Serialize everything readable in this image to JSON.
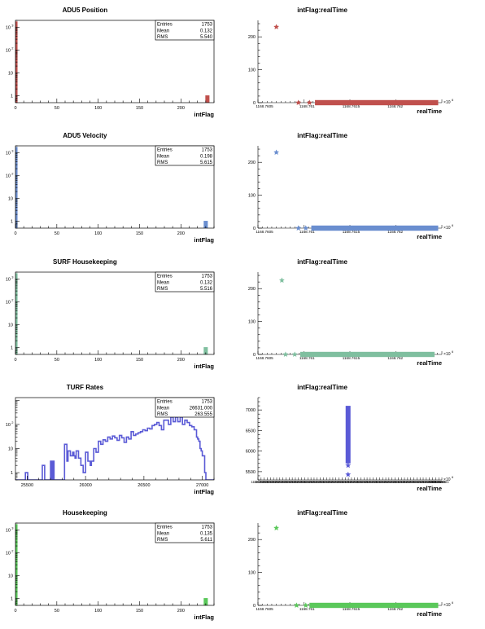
{
  "charts": [
    {
      "kind": "hist",
      "title": "ADU5 Position",
      "xlabel": "intFlag",
      "color": "#c0504d",
      "stats": {
        "Entries": "1753",
        "Mean": "0.132",
        "RMS": "5.540"
      },
      "xlim": [
        0,
        240
      ],
      "xticks": [
        "0",
        "50",
        "100",
        "150",
        "200"
      ],
      "xtick_values": [
        0,
        50,
        100,
        150,
        200
      ],
      "yscale": "log",
      "ylim": [
        0.5,
        2000
      ],
      "yticks": [
        {
          "value": 1,
          "base": "1",
          "exp": ""
        },
        {
          "value": 10,
          "base": "10",
          "exp": ""
        },
        {
          "value": 100,
          "base": "10",
          "exp": "2"
        },
        {
          "value": 1000,
          "base": "10",
          "exp": "3"
        }
      ],
      "bars": [
        {
          "x0": 0,
          "x1": 2,
          "value": 1730
        },
        {
          "x0": 230,
          "x1": 234,
          "value": 1
        }
      ]
    },
    {
      "kind": "scatter",
      "title": "intFlag:realTime",
      "xlabel": "realTime",
      "color": "#c0504d",
      "ylim": [
        0,
        250
      ],
      "yticks": [
        "0",
        "100",
        "200"
      ],
      "ytick_values": [
        0,
        100,
        200
      ],
      "xlim": [
        0,
        1
      ],
      "xticks": [
        "1168.7605",
        "1168.761",
        "1168.7615",
        "1168.762"
      ],
      "xtick_values": [
        0.0,
        0.24,
        0.48,
        0.72
      ],
      "xexp": "6",
      "band": {
        "x0": 0.31,
        "x1": 0.98,
        "y": 0
      },
      "points": [
        {
          "x": 0.1,
          "y": 230
        },
        {
          "x": 0.22,
          "y": 0
        },
        {
          "x": 0.28,
          "y": 0
        }
      ]
    },
    {
      "kind": "hist",
      "title": "ADU5 Velocity",
      "xlabel": "intFlag",
      "color": "#6a8ecf",
      "stats": {
        "Entries": "1753",
        "Mean": "0.198",
        "RMS": "5.615"
      },
      "xlim": [
        0,
        240
      ],
      "xticks": [
        "0",
        "50",
        "100",
        "150",
        "200"
      ],
      "xtick_values": [
        0,
        50,
        100,
        150,
        200
      ],
      "yscale": "log",
      "ylim": [
        0.5,
        2000
      ],
      "yticks": [
        {
          "value": 1,
          "base": "1",
          "exp": ""
        },
        {
          "value": 10,
          "base": "10",
          "exp": ""
        },
        {
          "value": 100,
          "base": "10",
          "exp": "2"
        },
        {
          "value": 1000,
          "base": "10",
          "exp": "3"
        }
      ],
      "bars": [
        {
          "x0": 0,
          "x1": 2,
          "value": 1730
        },
        {
          "x0": 228,
          "x1": 232,
          "value": 1
        }
      ]
    },
    {
      "kind": "scatter",
      "title": "intFlag:realTime",
      "xlabel": "realTime",
      "color": "#6a8ecf",
      "ylim": [
        0,
        250
      ],
      "yticks": [
        "0",
        "100",
        "200"
      ],
      "ytick_values": [
        0,
        100,
        200
      ],
      "xlim": [
        0,
        1
      ],
      "xticks": [
        "1168.7605",
        "1168.761",
        "1168.7615",
        "1168.762"
      ],
      "xtick_values": [
        0.0,
        0.24,
        0.48,
        0.72
      ],
      "xexp": "6",
      "band": {
        "x0": 0.29,
        "x1": 0.98,
        "y": 0
      },
      "points": [
        {
          "x": 0.1,
          "y": 230
        },
        {
          "x": 0.22,
          "y": 0
        },
        {
          "x": 0.26,
          "y": 0
        }
      ]
    },
    {
      "kind": "hist",
      "title": "SURF Housekeeping",
      "xlabel": "intFlag",
      "color": "#7fbf9f",
      "stats": {
        "Entries": "1753",
        "Mean": "0.132",
        "RMS": "5.516"
      },
      "xlim": [
        0,
        240
      ],
      "xticks": [
        "0",
        "50",
        "100",
        "150",
        "200"
      ],
      "xtick_values": [
        0,
        50,
        100,
        150,
        200
      ],
      "yscale": "log",
      "ylim": [
        0.5,
        2000
      ],
      "yticks": [
        {
          "value": 1,
          "base": "1",
          "exp": ""
        },
        {
          "value": 10,
          "base": "10",
          "exp": ""
        },
        {
          "value": 100,
          "base": "10",
          "exp": "2"
        },
        {
          "value": 1000,
          "base": "10",
          "exp": "3"
        }
      ],
      "bars": [
        {
          "x0": 0,
          "x1": 2,
          "value": 1730
        },
        {
          "x0": 228,
          "x1": 232,
          "value": 1
        }
      ]
    },
    {
      "kind": "scatter",
      "title": "intFlag:realTime",
      "xlabel": "realTime",
      "color": "#7fbf9f",
      "ylim": [
        0,
        250
      ],
      "yticks": [
        "0",
        "100",
        "200"
      ],
      "ytick_values": [
        0,
        100,
        200
      ],
      "xlim": [
        0,
        1
      ],
      "xticks": [
        "1168.7605",
        "1168.761",
        "1168.7615",
        "1168.762"
      ],
      "xtick_values": [
        0.0,
        0.24,
        0.48,
        0.72
      ],
      "xexp": "6",
      "band": {
        "x0": 0.23,
        "x1": 0.96,
        "y": 0
      },
      "points": [
        {
          "x": 0.13,
          "y": 225
        },
        {
          "x": 0.15,
          "y": 0
        },
        {
          "x": 0.2,
          "y": 0
        }
      ]
    },
    {
      "kind": "hist",
      "title": "TURF Rates",
      "xlabel": "intFlag",
      "color": "#5a5ad6",
      "stats": {
        "Entries": "1753",
        "Mean": "26631.000",
        "RMS": "263.555"
      },
      "xlim": [
        25400,
        27100
      ],
      "xticks": [
        "25500",
        "26000",
        "26500",
        "27000"
      ],
      "xtick_values": [
        25500,
        26000,
        26500,
        27000
      ],
      "yscale": "log",
      "ylim": [
        0.5,
        1300
      ],
      "yticks": [
        {
          "value": 1,
          "base": "1",
          "exp": ""
        },
        {
          "value": 10,
          "base": "10",
          "exp": ""
        },
        {
          "value": 100,
          "base": "10",
          "exp": "2"
        }
      ],
      "steps": [
        [
          25400,
          0.5
        ],
        [
          25485,
          1
        ],
        [
          25505,
          0.5
        ],
        [
          25630,
          2
        ],
        [
          25650,
          0.5
        ],
        [
          25700,
          3
        ],
        [
          25710,
          0.5
        ],
        [
          25720,
          3
        ],
        [
          25730,
          0.5
        ],
        [
          25820,
          15
        ],
        [
          25840,
          3
        ],
        [
          25850,
          8
        ],
        [
          25870,
          5
        ],
        [
          25890,
          7
        ],
        [
          25900,
          5
        ],
        [
          25910,
          4
        ],
        [
          25920,
          8
        ],
        [
          25940,
          4
        ],
        [
          25960,
          2
        ],
        [
          25980,
          1
        ],
        [
          25990,
          1
        ],
        [
          26000,
          7
        ],
        [
          26020,
          3
        ],
        [
          26040,
          2
        ],
        [
          26050,
          3
        ],
        [
          26070,
          10
        ],
        [
          26090,
          7
        ],
        [
          26110,
          20
        ],
        [
          26130,
          15
        ],
        [
          26150,
          23
        ],
        [
          26170,
          20
        ],
        [
          26190,
          30
        ],
        [
          26210,
          25
        ],
        [
          26230,
          33
        ],
        [
          26250,
          28
        ],
        [
          26270,
          22
        ],
        [
          26290,
          35
        ],
        [
          26310,
          28
        ],
        [
          26330,
          18
        ],
        [
          26350,
          30
        ],
        [
          26370,
          25
        ],
        [
          26390,
          50
        ],
        [
          26410,
          35
        ],
        [
          26430,
          40
        ],
        [
          26450,
          45
        ],
        [
          26470,
          50
        ],
        [
          26490,
          60
        ],
        [
          26510,
          55
        ],
        [
          26530,
          70
        ],
        [
          26550,
          65
        ],
        [
          26570,
          90
        ],
        [
          26590,
          100
        ],
        [
          26610,
          120
        ],
        [
          26630,
          90
        ],
        [
          26650,
          60
        ],
        [
          26670,
          150
        ],
        [
          26690,
          150
        ],
        [
          26710,
          100
        ],
        [
          26730,
          200
        ],
        [
          26750,
          130
        ],
        [
          26770,
          200
        ],
        [
          26790,
          130
        ],
        [
          26810,
          200
        ],
        [
          26830,
          100
        ],
        [
          26850,
          150
        ],
        [
          26870,
          120
        ],
        [
          26890,
          90
        ],
        [
          26910,
          80
        ],
        [
          26930,
          60
        ],
        [
          26950,
          30
        ],
        [
          26960,
          25
        ],
        [
          26970,
          20
        ],
        [
          26980,
          10
        ],
        [
          26990,
          8
        ],
        [
          27000,
          5
        ],
        [
          27020,
          1
        ],
        [
          27030,
          0.5
        ],
        [
          27100,
          0.5
        ]
      ]
    },
    {
      "kind": "scatter_dense",
      "title": "intFlag:realTime",
      "xlabel": "realTime",
      "color": "#5a5ad6",
      "ylim": [
        5300,
        7300
      ],
      "yticks": [
        "5500",
        "6000",
        "6500",
        "7000"
      ],
      "ytick_values": [
        5500,
        6000,
        6500,
        7000
      ],
      "xlim": [
        0,
        1
      ],
      "xexp": "6",
      "xtick_label": "1168.761",
      "xtick_count": 60,
      "xtick_end_label": "1168.7621",
      "bar": {
        "x": 0.49,
        "y0": 5700,
        "y1": 7100
      },
      "extra_points": [
        {
          "x": 0.49,
          "y": 5650
        },
        {
          "x": 0.49,
          "y": 5430
        }
      ]
    },
    {
      "kind": "hist",
      "title": "Housekeeping",
      "xlabel": "intFlag",
      "color": "#5ac85a",
      "stats": {
        "Entries": "1753",
        "Mean": "0.135",
        "RMS": "5.611"
      },
      "xlim": [
        0,
        240
      ],
      "xticks": [
        "0",
        "50",
        "100",
        "150",
        "200"
      ],
      "xtick_values": [
        0,
        50,
        100,
        150,
        200
      ],
      "yscale": "log",
      "ylim": [
        0.5,
        2000
      ],
      "yticks": [
        {
          "value": 1,
          "base": "1",
          "exp": ""
        },
        {
          "value": 10,
          "base": "10",
          "exp": ""
        },
        {
          "value": 100,
          "base": "10",
          "exp": "2"
        },
        {
          "value": 1000,
          "base": "10",
          "exp": "3"
        }
      ],
      "bars": [
        {
          "x0": 0,
          "x1": 2,
          "value": 1730
        },
        {
          "x0": 228,
          "x1": 232,
          "value": 1
        }
      ]
    },
    {
      "kind": "scatter",
      "title": "intFlag:realTime",
      "xlabel": "realTime",
      "color": "#5ac85a",
      "ylim": [
        0,
        250
      ],
      "yticks": [
        "0",
        "100",
        "200"
      ],
      "ytick_values": [
        0,
        100,
        200
      ],
      "xlim": [
        0,
        1
      ],
      "xticks": [
        "1168.7605",
        "1168.761",
        "1168.7615",
        "1168.762"
      ],
      "xtick_values": [
        0.0,
        0.24,
        0.48,
        0.72
      ],
      "xexp": "6",
      "band": {
        "x0": 0.28,
        "x1": 0.98,
        "y": 0
      },
      "points": [
        {
          "x": 0.1,
          "y": 235
        },
        {
          "x": 0.21,
          "y": 0
        },
        {
          "x": 0.26,
          "y": 0
        }
      ]
    }
  ]
}
